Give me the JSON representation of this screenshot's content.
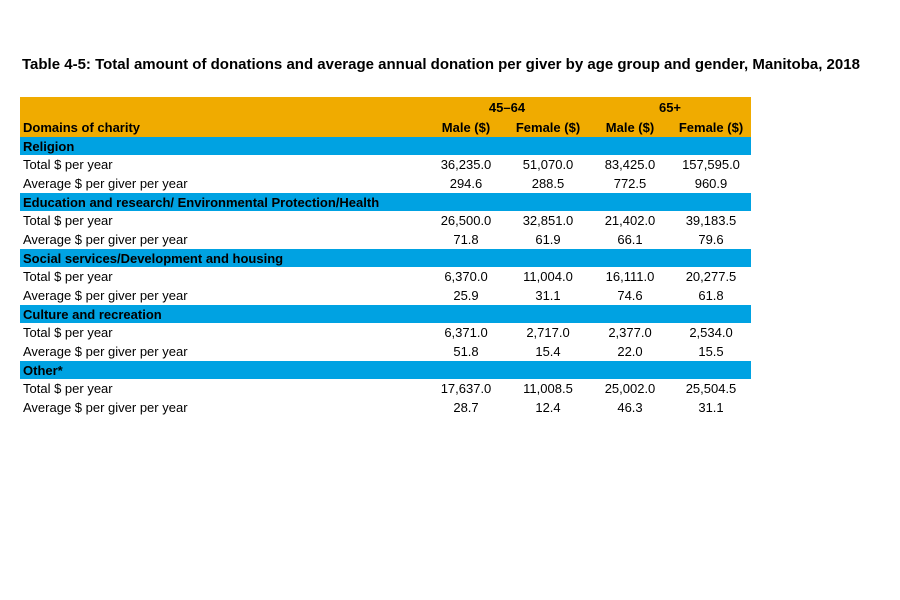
{
  "title": "Table 4-5: Total amount of donations and average annual donation per giver by age group and gender, Manitoba, 2018",
  "table": {
    "colors": {
      "header_bg": "#F0AB00",
      "section_bg": "#00A2E2",
      "text": "#000000",
      "row_bg": "#FFFFFF",
      "page_bg": "#FFFFFF"
    },
    "header": {
      "domain_col_label": "Domains of charity",
      "groups": [
        {
          "label": "45–64"
        },
        {
          "label": "65+"
        }
      ],
      "columns": [
        "Male ($)",
        "Female ($)",
        "Male ($)",
        "Female ($)"
      ]
    },
    "sections": [
      {
        "name": "Religion",
        "rows": [
          {
            "label": "Total $ per year",
            "values": [
              "36,235.0",
              "51,070.0",
              "83,425.0",
              "157,595.0"
            ]
          },
          {
            "label": "Average $ per giver per year",
            "values": [
              "294.6",
              "288.5",
              "772.5",
              "960.9"
            ]
          }
        ]
      },
      {
        "name": "Education and research/ Environmental Protection/Health",
        "rows": [
          {
            "label": "Total $ per year",
            "values": [
              "26,500.0",
              "32,851.0",
              "21,402.0",
              "39,183.5"
            ]
          },
          {
            "label": "Average $ per giver per year",
            "values": [
              "71.8",
              "61.9",
              "66.1",
              "79.6"
            ]
          }
        ]
      },
      {
        "name": "Social services/Development and housing",
        "rows": [
          {
            "label": "Total $ per year",
            "values": [
              "6,370.0",
              "11,004.0",
              "16,111.0",
              "20,277.5"
            ]
          },
          {
            "label": "Average $ per giver per year",
            "values": [
              "25.9",
              "31.1",
              "74.6",
              "61.8"
            ]
          }
        ]
      },
      {
        "name": "Culture and recreation",
        "rows": [
          {
            "label": "Total $ per year",
            "values": [
              "6,371.0",
              "2,717.0",
              "2,377.0",
              "2,534.0"
            ]
          },
          {
            "label": "Average $ per giver per year",
            "values": [
              "51.8",
              "15.4",
              "22.0",
              "15.5"
            ]
          }
        ]
      },
      {
        "name": "Other*",
        "rows": [
          {
            "label": "Total $ per year",
            "values": [
              "17,637.0",
              "11,008.5",
              "25,002.0",
              "25,504.5"
            ]
          },
          {
            "label": "Average $ per giver per year",
            "values": [
              "28.7",
              "12.4",
              "46.3",
              "31.1"
            ]
          }
        ]
      }
    ]
  },
  "chart_data": {
    "type": "table",
    "title": "Table 4-5: Total amount of donations and average annual donation per giver by age group and gender, Manitoba, 2018",
    "column_groups": [
      "45–64",
      "45–64",
      "65+",
      "65+"
    ],
    "columns": [
      "Male ($)",
      "Female ($)",
      "Male ($)",
      "Female ($)"
    ],
    "rows": [
      {
        "section": "Religion",
        "metric": "Total $ per year",
        "values": [
          36235.0,
          51070.0,
          83425.0,
          157595.0
        ]
      },
      {
        "section": "Religion",
        "metric": "Average $ per giver per year",
        "values": [
          294.6,
          288.5,
          772.5,
          960.9
        ]
      },
      {
        "section": "Education and research/ Environmental Protection/Health",
        "metric": "Total $ per year",
        "values": [
          26500.0,
          32851.0,
          21402.0,
          39183.5
        ]
      },
      {
        "section": "Education and research/ Environmental Protection/Health",
        "metric": "Average $ per giver per year",
        "values": [
          71.8,
          61.9,
          66.1,
          79.6
        ]
      },
      {
        "section": "Social services/Development and housing",
        "metric": "Total $ per year",
        "values": [
          6370.0,
          11004.0,
          16111.0,
          20277.5
        ]
      },
      {
        "section": "Social services/Development and housing",
        "metric": "Average $ per giver per year",
        "values": [
          25.9,
          31.1,
          74.6,
          61.8
        ]
      },
      {
        "section": "Culture and recreation",
        "metric": "Total $ per year",
        "values": [
          6371.0,
          2717.0,
          2377.0,
          2534.0
        ]
      },
      {
        "section": "Culture and recreation",
        "metric": "Average $ per giver per year",
        "values": [
          51.8,
          15.4,
          22.0,
          15.5
        ]
      },
      {
        "section": "Other*",
        "metric": "Total $ per year",
        "values": [
          17637.0,
          11008.5,
          25002.0,
          25504.5
        ]
      },
      {
        "section": "Other*",
        "metric": "Average $ per giver per year",
        "values": [
          28.7,
          12.4,
          46.3,
          31.1
        ]
      }
    ]
  }
}
